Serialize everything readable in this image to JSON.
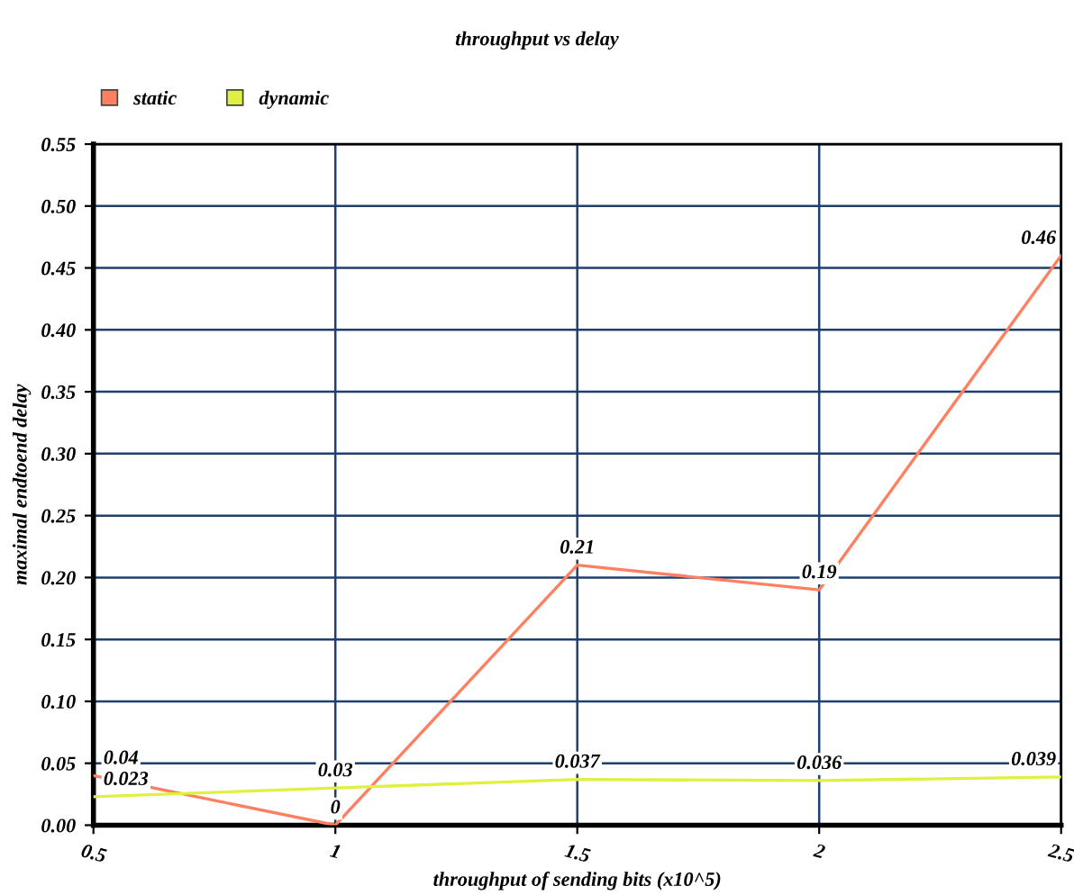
{
  "chart_data": {
    "type": "line",
    "title": "throughput vs delay",
    "xlabel": "throughput of sending bits (x10^5)",
    "ylabel": "maximal endtoend delay",
    "x": [
      0.5,
      1,
      1.5,
      2,
      2.5
    ],
    "series": [
      {
        "name": "static",
        "color": "#ff8060",
        "values": [
          0.04,
          0,
          0.21,
          0.19,
          0.46
        ]
      },
      {
        "name": "dynamic",
        "color": "#e0f040",
        "values": [
          0.023,
          0.03,
          0.037,
          0.036,
          0.039
        ]
      }
    ],
    "xlim": [
      0.5,
      2.5
    ],
    "xticks": [
      0.5,
      1,
      1.5,
      2,
      2.5
    ],
    "ylim": [
      0,
      0.55
    ],
    "yticks": [
      {
        "value": 0,
        "label": "0.00"
      },
      {
        "value": 0.05,
        "label": "0.05"
      },
      {
        "value": 0.1,
        "label": "0.10"
      },
      {
        "value": 0.15,
        "label": "0.15"
      },
      {
        "value": 0.2,
        "label": "0.20"
      },
      {
        "value": 0.25,
        "label": "0.25"
      },
      {
        "value": 0.3,
        "label": "0.30"
      },
      {
        "value": 0.35,
        "label": "0.35"
      },
      {
        "value": 0.4,
        "label": "0.40"
      },
      {
        "value": 0.45,
        "label": "0.45"
      },
      {
        "value": 0.5,
        "label": "0.50"
      },
      {
        "value": 0.55,
        "label": "0.55"
      }
    ],
    "grid": true,
    "legend": "top left",
    "data_labels": true,
    "marker": "none",
    "line_style": "solid"
  }
}
